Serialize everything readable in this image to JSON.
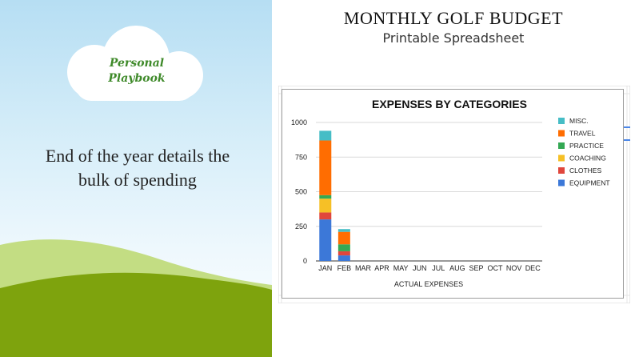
{
  "brand": {
    "line1": "Personal",
    "line2": "Playbook"
  },
  "tagline": {
    "line1": "End of the year details the",
    "line2": "bulk of spending"
  },
  "header": {
    "title": "MONTHLY GOLF BUDGET",
    "subtitle": "Printable Spreadsheet"
  },
  "colors": {
    "sky": "#b6def3",
    "hill_back": "#c3dd83",
    "hill_front": "#7ea30d",
    "cloud": "#ffffff",
    "brand_text": "#3f8a2a"
  },
  "chart_data": {
    "type": "bar",
    "stacked": true,
    "title": "EXPENSES BY CATEGORIES",
    "xlabel": "ACTUAL EXPENSES",
    "ylabel": "",
    "ylim": [
      0,
      1000
    ],
    "yticks": [
      0,
      250,
      500,
      750,
      1000
    ],
    "grid": true,
    "legend_position": "right",
    "categories": [
      "JAN",
      "FEB",
      "MAR",
      "APR",
      "MAY",
      "JUN",
      "JUL",
      "AUG",
      "SEP",
      "OCT",
      "NOV",
      "DEC"
    ],
    "series": [
      {
        "name": "EQUIPMENT",
        "color": "#3c78d8",
        "values": [
          300,
          40,
          0,
          0,
          0,
          0,
          0,
          0,
          0,
          0,
          0,
          0
        ]
      },
      {
        "name": "CLOTHES",
        "color": "#e0463c",
        "values": [
          50,
          30,
          0,
          0,
          0,
          0,
          0,
          0,
          0,
          0,
          0,
          0
        ]
      },
      {
        "name": "COACHING",
        "color": "#f6c026",
        "values": [
          100,
          0,
          0,
          0,
          0,
          0,
          0,
          0,
          0,
          0,
          0,
          0
        ]
      },
      {
        "name": "PRACTICE",
        "color": "#34a853",
        "values": [
          25,
          50,
          0,
          0,
          0,
          0,
          0,
          0,
          0,
          0,
          0,
          0
        ]
      },
      {
        "name": "TRAVEL",
        "color": "#ff6d01",
        "values": [
          395,
          90,
          0,
          0,
          0,
          0,
          0,
          0,
          0,
          0,
          0,
          0
        ]
      },
      {
        "name": "MISC.",
        "color": "#46bdc6",
        "values": [
          70,
          20,
          0,
          0,
          0,
          0,
          0,
          0,
          0,
          0,
          0,
          0
        ]
      }
    ]
  }
}
